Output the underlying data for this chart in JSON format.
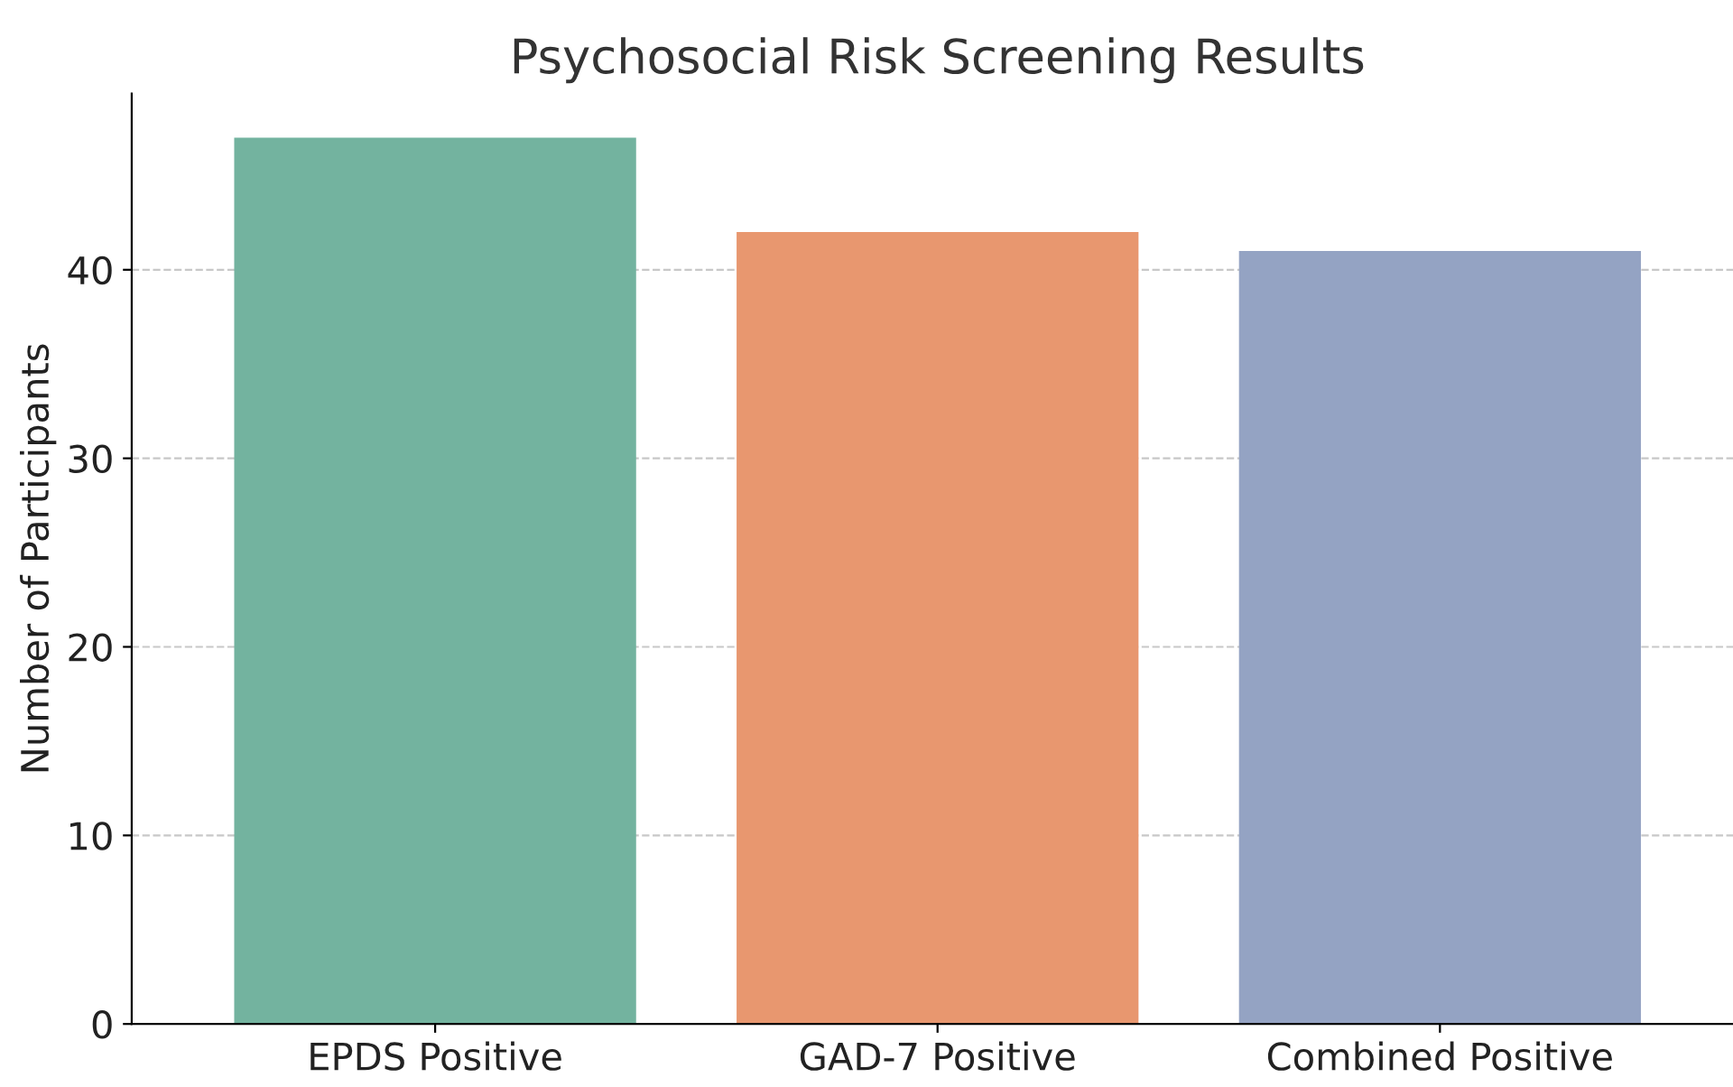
{
  "chart_data": {
    "type": "bar",
    "title": "Psychosocial Risk Screening Results",
    "ylabel": "Number of Participants",
    "categories": [
      "EPDS Positive",
      "GAD-7 Positive",
      "Combined Positive"
    ],
    "values": [
      47,
      42,
      41
    ],
    "colors": [
      "#73b39f",
      "#e8976f",
      "#94a3c3"
    ],
    "ylim": [
      0,
      49.35
    ],
    "yticks": [
      0,
      10,
      20,
      30,
      40
    ],
    "grid": "y"
  }
}
